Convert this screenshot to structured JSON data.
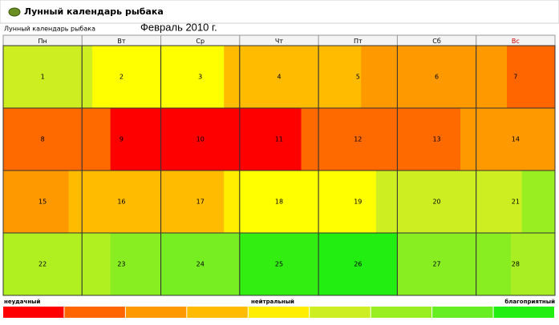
{
  "header": {
    "title": "Лунный календарь рыбака"
  },
  "subtitle": "Лунный календарь рыбака",
  "month": "Февраль  2010 г.",
  "weekdays": [
    "Пн",
    "Вт",
    "Ср",
    "Чт",
    "Пт",
    "Сб",
    "Вс"
  ],
  "weekday_colors": [
    "#000000",
    "#000000",
    "#000000",
    "#000000",
    "#000000",
    "#000000",
    "#cc0000"
  ],
  "days": [
    {
      "day": "1",
      "colors": [
        "#cdef22"
      ]
    },
    {
      "day": "2",
      "colors": [
        "#cdef22",
        "#ffff00"
      ]
    },
    {
      "day": "3",
      "colors": [
        "#ffff00",
        "#ffbb00"
      ]
    },
    {
      "day": "4",
      "colors": [
        "#ffbb00"
      ]
    },
    {
      "day": "5",
      "colors": [
        "#ffbb00",
        "#ff9900"
      ]
    },
    {
      "day": "6",
      "colors": [
        "#ff9900"
      ]
    },
    {
      "day": "7",
      "colors": [
        "#ff9900",
        "#ff6600"
      ]
    },
    {
      "day": "8",
      "colors": [
        "#ff6a00"
      ]
    },
    {
      "day": "9",
      "colors": [
        "#ff6a00",
        "#ff0000"
      ]
    },
    {
      "day": "10",
      "colors": [
        "#ff0000"
      ]
    },
    {
      "day": "11",
      "colors": [
        "#ff0000",
        "#ff6a00"
      ]
    },
    {
      "day": "12",
      "colors": [
        "#ff6a00"
      ]
    },
    {
      "day": "13",
      "colors": [
        "#ff6a00",
        "#ff9900"
      ]
    },
    {
      "day": "14",
      "colors": [
        "#ff9900"
      ]
    },
    {
      "day": "15",
      "colors": [
        "#ff9900",
        "#ffbb00"
      ]
    },
    {
      "day": "16",
      "colors": [
        "#ffbb00"
      ]
    },
    {
      "day": "17",
      "colors": [
        "#ffbb00",
        "#ffee00"
      ]
    },
    {
      "day": "18",
      "colors": [
        "#ffff00"
      ]
    },
    {
      "day": "19",
      "colors": [
        "#ffff00",
        "#cdef22"
      ]
    },
    {
      "day": "20",
      "colors": [
        "#cdef22"
      ]
    },
    {
      "day": "21",
      "colors": [
        "#cdef22",
        "#99ee22"
      ]
    },
    {
      "day": "22",
      "colors": [
        "#b0f020"
      ]
    },
    {
      "day": "23",
      "colors": [
        "#b0f020",
        "#88ee22"
      ]
    },
    {
      "day": "24",
      "colors": [
        "#77ee22"
      ]
    },
    {
      "day": "25",
      "colors": [
        "#33ee11"
      ]
    },
    {
      "day": "26",
      "colors": [
        "#22ee11"
      ]
    },
    {
      "day": "27",
      "colors": [
        "#88ee22"
      ]
    },
    {
      "day": "28",
      "colors": [
        "#88ee22",
        "#a8ee22"
      ]
    }
  ],
  "legend": {
    "low": "неудачный",
    "mid": "нейтральный",
    "high": "благоприятный",
    "colors": [
      "#ff0000",
      "#ff6600",
      "#ff9900",
      "#ffbb00",
      "#ffee00",
      "#ccee22",
      "#99ee22",
      "#66ee22",
      "#22ee11"
    ]
  }
}
